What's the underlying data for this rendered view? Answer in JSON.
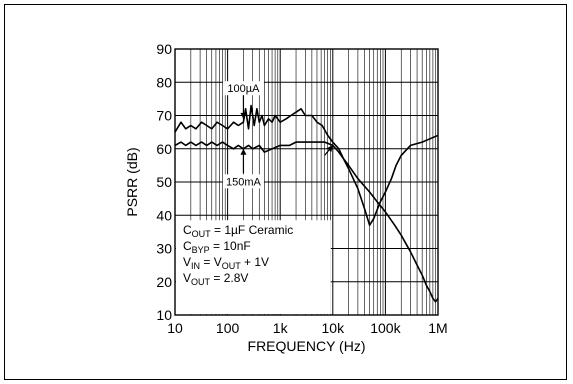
{
  "chart_data": {
    "type": "line",
    "xlabel": "FREQUENCY (Hz)",
    "ylabel": "PSRR (dB)",
    "xscale": "log",
    "xlim": [
      10,
      1000000
    ],
    "ylim": [
      10,
      90
    ],
    "grid": true,
    "x_tick_labels": [
      {
        "value": 10,
        "text": "10"
      },
      {
        "value": 100,
        "text": "100"
      },
      {
        "value": 1000,
        "text": "1k"
      },
      {
        "value": 10000,
        "text": "10k"
      },
      {
        "value": 100000,
        "text": "100k"
      },
      {
        "value": 1000000,
        "text": "1M"
      }
    ],
    "y_ticks": [
      10,
      20,
      30,
      40,
      50,
      60,
      70,
      80,
      90
    ],
    "series": [
      {
        "name": "100µA",
        "x": [
          10,
          13,
          16,
          20,
          25,
          32,
          40,
          50,
          63,
          80,
          100,
          130,
          160,
          200,
          220,
          250,
          280,
          320,
          360,
          400,
          450,
          500,
          600,
          700,
          800,
          1000,
          1300,
          1600,
          2000,
          2500,
          3000,
          4000,
          5000,
          6300,
          8000,
          10000,
          13000,
          16000,
          20000,
          30000,
          40000,
          50000,
          60000,
          80000,
          100000,
          130000,
          160000,
          200000,
          300000,
          500000,
          700000,
          1000000
        ],
        "y": [
          65,
          68,
          66,
          67,
          66,
          68,
          67,
          66,
          68,
          67,
          66,
          68,
          67,
          68,
          72,
          66,
          73,
          67,
          72,
          68,
          70,
          67,
          69,
          68,
          70,
          68,
          69,
          70,
          71,
          72,
          70,
          70,
          68,
          67,
          64,
          62,
          60,
          57,
          54,
          48,
          42,
          37,
          39,
          44,
          47,
          51,
          55,
          58,
          61,
          62,
          63,
          64
        ]
      },
      {
        "name": "150mA",
        "x": [
          10,
          13,
          16,
          20,
          25,
          32,
          40,
          50,
          63,
          80,
          100,
          130,
          160,
          200,
          250,
          300,
          400,
          500,
          700,
          1000,
          1500,
          2000,
          3000,
          5000,
          7000,
          10000,
          13000,
          16000,
          20000,
          30000,
          50000,
          70000,
          100000,
          150000,
          200000,
          300000,
          400000,
          500000,
          600000,
          700000,
          800000,
          900000,
          1000000
        ],
        "y": [
          61,
          62,
          61,
          62,
          61,
          62,
          61,
          62,
          61,
          62,
          61,
          60,
          61,
          60,
          61,
          60,
          61,
          59,
          60,
          61,
          61,
          62,
          62,
          62,
          62,
          61,
          59,
          57,
          55,
          51,
          47,
          44,
          41,
          37,
          34,
          29,
          25,
          22,
          19,
          17,
          15,
          14,
          15
        ]
      }
    ],
    "annotations": [
      {
        "text": "100µA",
        "x": 200,
        "y": 77,
        "arrow_to": {
          "x": 200,
          "y": 69
        }
      },
      {
        "text": "150mA",
        "x": 200,
        "y": 52,
        "arrow_to": {
          "x": 200,
          "y": 60
        }
      },
      {
        "text": "",
        "x": 7000,
        "y": 58,
        "arrow_to": {
          "x": 10000,
          "y": 61
        }
      }
    ],
    "conditions": [
      {
        "main": "C",
        "sub": "OUT",
        "rest": " = 1µF Ceramic"
      },
      {
        "main": "C",
        "sub": "BYP",
        "rest": " = 10nF"
      },
      {
        "main": "V",
        "sub": "IN",
        "rest": " = V",
        "sub2": "OUT",
        "rest2": " + 1V"
      },
      {
        "main": "V",
        "sub": "OUT",
        "rest": " = 2.8V"
      }
    ],
    "colors": {
      "line": "#000000",
      "grid": "#000000",
      "background": "#ffffff"
    }
  }
}
